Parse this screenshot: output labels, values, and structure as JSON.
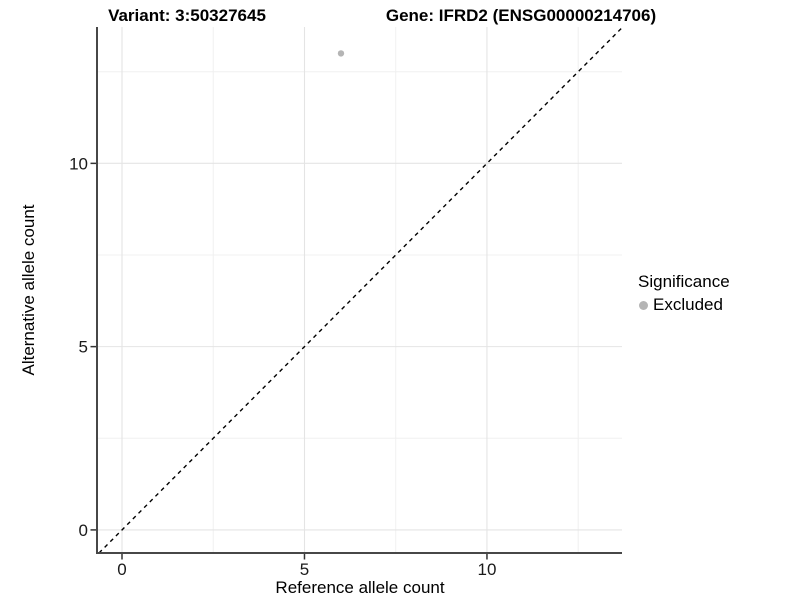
{
  "chart_data": {
    "type": "scatter",
    "title_left": "Variant: 3:50327645",
    "title_right": "Gene: IFRD2 (ENSG00000214706)",
    "xlabel": "Reference allele count",
    "ylabel": "Alternative allele count",
    "xlim": [
      -0.685,
      13.7
    ],
    "ylim": [
      -0.63,
      13.72
    ],
    "x_ticks": [
      0,
      5,
      10
    ],
    "y_ticks": [
      0,
      5,
      10
    ],
    "x_minor_ticks": [
      2.5,
      7.5,
      12.5
    ],
    "y_minor_ticks": [
      2.5,
      7.5,
      12.5
    ],
    "grid": true,
    "points": [
      {
        "x": 6,
        "y": 13,
        "series": "Excluded"
      }
    ],
    "reference_line": {
      "type": "identity",
      "style": "dashed",
      "color": "#000000"
    },
    "legend": {
      "title": "Significance",
      "position": "right",
      "items": [
        {
          "label": "Excluded",
          "color": "#b5b5b5"
        }
      ]
    },
    "colors": {
      "point": "#b5b5b5",
      "grid_major": "#e4e4e4",
      "grid_minor": "#f0f0f0",
      "axis_line": "#474747",
      "tick_mark": "#333333",
      "tick_text": "#1a1a1a"
    }
  }
}
